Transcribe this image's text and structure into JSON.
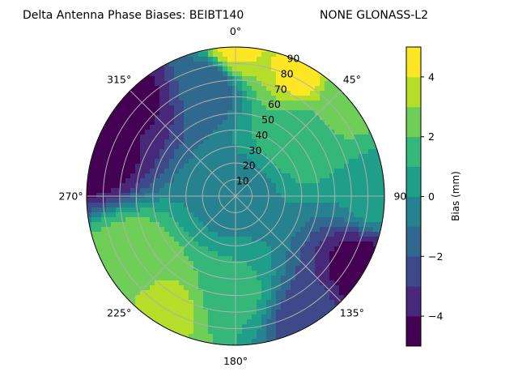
{
  "chart_data": {
    "type": "heatmap",
    "projection": "polar",
    "title": "Delta Antenna Phase Biases: BEIBT140",
    "subtitle": "NONE GLONASS-L2",
    "theta_direction": "clockwise",
    "theta_zero": "top",
    "angle_ticks": [
      "0°",
      "45°",
      "90",
      "135°",
      "180°",
      "225°",
      "270°",
      "315°"
    ],
    "radial_ticks": [
      "10",
      "20",
      "30",
      "40",
      "50",
      "60",
      "70",
      "80",
      "90"
    ],
    "rlim": [
      0,
      90
    ],
    "grid": true,
    "colorbar": {
      "label": "Bias (mm)",
      "levels": [
        -5,
        -4,
        -3,
        -2,
        -1,
        0,
        1,
        2,
        3,
        4,
        5
      ],
      "tick_labels": [
        "−4",
        "−2",
        "0",
        "2",
        "4"
      ],
      "tick_values": [
        -4,
        -2,
        0,
        2,
        4
      ],
      "colors": [
        "#440154",
        "#482878",
        "#3e4989",
        "#31688e",
        "#26828e",
        "#1f9e89",
        "#35b779",
        "#6ece58",
        "#b5de2b",
        "#fde725"
      ]
    },
    "field_samples": [
      {
        "az": 0,
        "zenith": 0,
        "bias": -0.4
      },
      {
        "az": 0,
        "zenith": 90,
        "bias": 4.2
      },
      {
        "az": 30,
        "zenith": 85,
        "bias": 4.5
      },
      {
        "az": 45,
        "zenith": 88,
        "bias": 2.5
      },
      {
        "az": 90,
        "zenith": 88,
        "bias": 0.5
      },
      {
        "az": 120,
        "zenith": 88,
        "bias": -4.5
      },
      {
        "az": 150,
        "zenith": 85,
        "bias": -2.5
      },
      {
        "az": 210,
        "zenith": 80,
        "bias": 3.2
      },
      {
        "az": 240,
        "zenith": 75,
        "bias": 2.8
      },
      {
        "az": 285,
        "zenith": 88,
        "bias": -4.6
      },
      {
        "az": 315,
        "zenith": 85,
        "bias": -4.2
      },
      {
        "az": 345,
        "zenith": 70,
        "bias": -1.8
      },
      {
        "az": 45,
        "zenith": 55,
        "bias": 1.6
      },
      {
        "az": 180,
        "zenith": 60,
        "bias": 1.2
      }
    ]
  }
}
